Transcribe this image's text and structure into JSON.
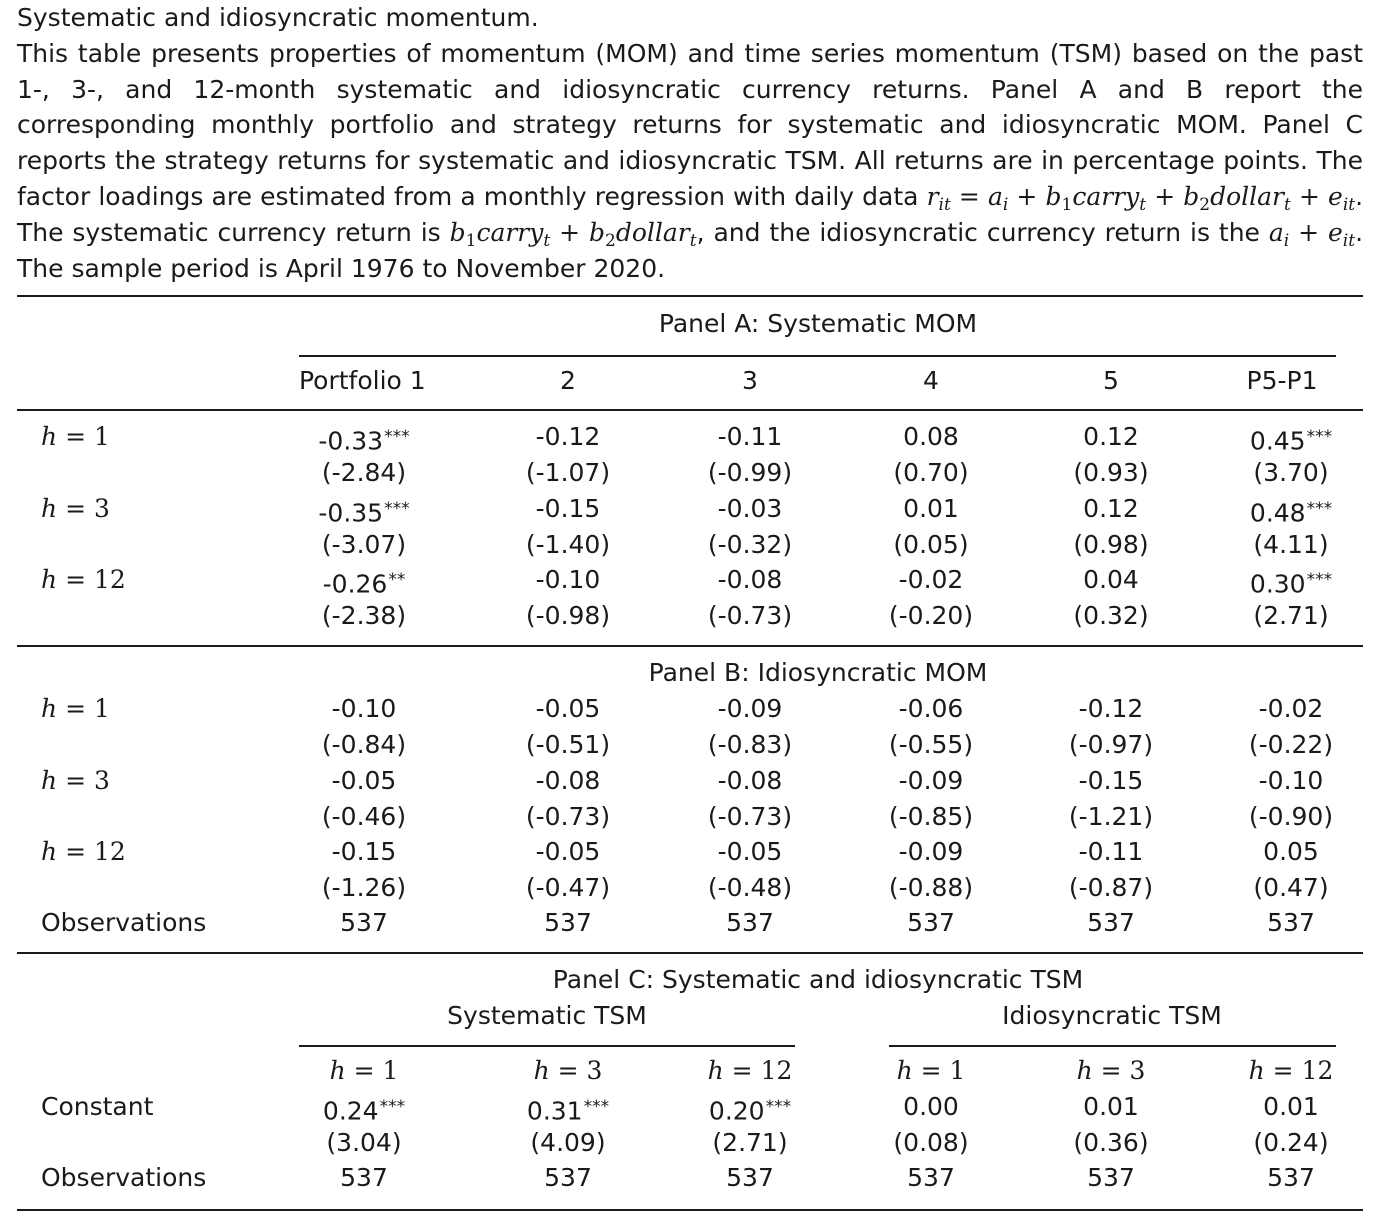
{
  "caption": {
    "title": "Systematic and idiosyncratic momentum.",
    "body_1": "This table presents properties of momentum (MOM) and time series momentum (TSM) based on the past 1-, 3-, and 12-month systematic and idiosyncratic currency returns. Panel A and B report the corresponding monthly portfolio and strategy returns for systematic and idiosyncratic MOM. Panel C reports the strategy returns for systematic and idiosyncratic TSM. All returns are in percentage points. The factor loadings are estimated from a monthly regression with daily data",
    "body_2": ". The systematic currency return is",
    "body_3": ", and the idiosyncratic currency return is the",
    "body_4": ". The sample period is April 1976 to November 2020."
  },
  "panel_a": {
    "title": "Panel A: Systematic MOM",
    "columns": [
      "Portfolio 1",
      "2",
      "3",
      "4",
      "5",
      "P5-P1"
    ],
    "rows": [
      {
        "h": "1",
        "values": [
          "-0.33",
          "-0.12",
          "-0.11",
          "0.08",
          "0.12",
          "0.45"
        ],
        "stars": [
          "***",
          "",
          "",
          "",
          "",
          "***"
        ],
        "tstats": [
          "(-2.84)",
          "(-1.07)",
          "(-0.99)",
          "(0.70)",
          "(0.93)",
          "(3.70)"
        ]
      },
      {
        "h": "3",
        "values": [
          "-0.35",
          "-0.15",
          "-0.03",
          "0.01",
          "0.12",
          "0.48"
        ],
        "stars": [
          "***",
          "",
          "",
          "",
          "",
          "***"
        ],
        "tstats": [
          "(-3.07)",
          "(-1.40)",
          "(-0.32)",
          "(0.05)",
          "(0.98)",
          "(4.11)"
        ]
      },
      {
        "h": "12",
        "values": [
          "-0.26",
          "-0.10",
          "-0.08",
          "-0.02",
          "0.04",
          "0.30"
        ],
        "stars": [
          "**",
          "",
          "",
          "",
          "",
          "***"
        ],
        "tstats": [
          "(-2.38)",
          "(-0.98)",
          "(-0.73)",
          "(-0.20)",
          "(0.32)",
          "(2.71)"
        ]
      }
    ]
  },
  "panel_b": {
    "title": "Panel B: Idiosyncratic MOM",
    "rows": [
      {
        "h": "1",
        "values": [
          "-0.10",
          "-0.05",
          "-0.09",
          "-0.06",
          "-0.12",
          "-0.02"
        ],
        "stars": [
          "",
          "",
          "",
          "",
          "",
          ""
        ],
        "tstats": [
          "(-0.84)",
          "(-0.51)",
          "(-0.83)",
          "(-0.55)",
          "(-0.97)",
          "(-0.22)"
        ]
      },
      {
        "h": "3",
        "values": [
          "-0.05",
          "-0.08",
          "-0.08",
          "-0.09",
          "-0.15",
          "-0.10"
        ],
        "stars": [
          "",
          "",
          "",
          "",
          "",
          ""
        ],
        "tstats": [
          "(-0.46)",
          "(-0.73)",
          "(-0.73)",
          "(-0.85)",
          "(-1.21)",
          "(-0.90)"
        ]
      },
      {
        "h": "12",
        "values": [
          "-0.15",
          "-0.05",
          "-0.05",
          "-0.09",
          "-0.11",
          "0.05"
        ],
        "stars": [
          "",
          "",
          "",
          "",
          "",
          ""
        ],
        "tstats": [
          "(-1.26)",
          "(-0.47)",
          "(-0.48)",
          "(-0.88)",
          "(-0.87)",
          "(0.47)"
        ]
      }
    ],
    "observations_label": "Observations",
    "observations": [
      "537",
      "537",
      "537",
      "537",
      "537",
      "537"
    ]
  },
  "panel_c": {
    "title": "Panel C: Systematic and idiosyncratic TSM",
    "group_left": "Systematic TSM",
    "group_right": "Idiosyncratic TSM",
    "columns_h": [
      "1",
      "3",
      "12",
      "1",
      "3",
      "12"
    ],
    "constant_label": "Constant",
    "values": [
      "0.24",
      "0.31",
      "0.20",
      "0.00",
      "0.01",
      "0.01"
    ],
    "stars": [
      "***",
      "***",
      "***",
      "",
      "",
      ""
    ],
    "tstats": [
      "(3.04)",
      "(4.09)",
      "(2.71)",
      "(0.08)",
      "(0.36)",
      "(0.24)"
    ],
    "observations_label": "Observations",
    "observations": [
      "537",
      "537",
      "537",
      "537",
      "537",
      "537"
    ]
  }
}
